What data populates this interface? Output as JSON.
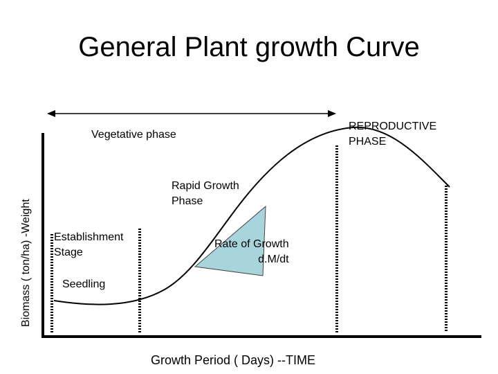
{
  "title": "General Plant growth Curve",
  "axes": {
    "ylabel": "Biomass ( ton/ha) -Weight",
    "xlabel": "Growth Period  ( Days) --TIME"
  },
  "labels": {
    "vegetative": "Vegetative phase",
    "reproductive": [
      "REPRODUCTIVE",
      "PHASE"
    ],
    "rapid_growth": [
      "Rapid Growth",
      "Phase"
    ],
    "establishment": [
      "Establishment",
      "Stage"
    ],
    "rate": [
      "Rate of Growth",
      "d.M/dt"
    ],
    "seedling": "Seedling"
  },
  "colors": {
    "triangle_fill": "#a8d4dc",
    "line": "#000000"
  }
}
